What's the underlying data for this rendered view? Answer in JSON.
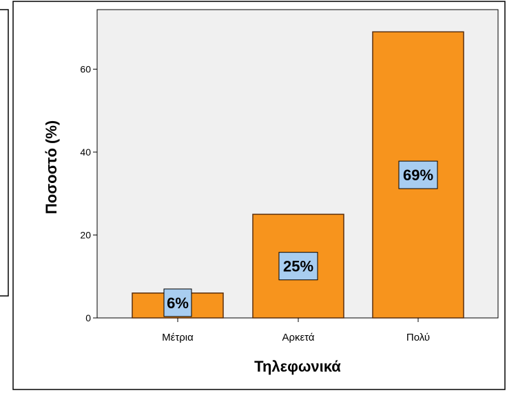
{
  "chart_data": {
    "type": "bar",
    "categories": [
      "Μέτρια",
      "Αρκετά",
      "Πολύ"
    ],
    "values": [
      6,
      25,
      69
    ],
    "data_labels": [
      "6%",
      "25%",
      "69%"
    ],
    "xlabel": "Τηλεφωνικά",
    "ylabel": "Ποσοστό (%)",
    "yticks": [
      0,
      20,
      40,
      60
    ],
    "ylim": [
      0,
      73
    ],
    "grid": false,
    "bar_color": "#f7941d",
    "bar_edge_color": "#5a2e0c",
    "label_box_color": "#a8cdf0",
    "plot_background": "#f0f0f0"
  }
}
